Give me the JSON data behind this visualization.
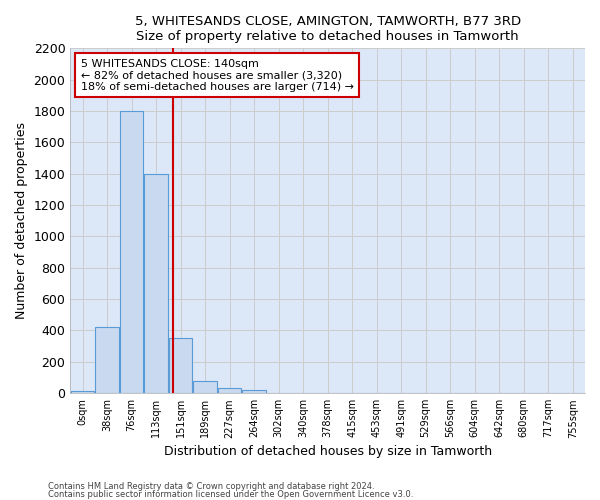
{
  "title": "5, WHITESANDS CLOSE, AMINGTON, TAMWORTH, B77 3RD",
  "subtitle": "Size of property relative to detached houses in Tamworth",
  "xlabel": "Distribution of detached houses by size in Tamworth",
  "ylabel": "Number of detached properties",
  "bar_labels": [
    "0sqm",
    "38sqm",
    "76sqm",
    "113sqm",
    "151sqm",
    "189sqm",
    "227sqm",
    "264sqm",
    "302sqm",
    "340sqm",
    "378sqm",
    "415sqm",
    "453sqm",
    "491sqm",
    "529sqm",
    "566sqm",
    "604sqm",
    "642sqm",
    "680sqm",
    "717sqm",
    "755sqm"
  ],
  "bar_values": [
    15,
    420,
    1800,
    1400,
    350,
    80,
    35,
    20,
    0,
    0,
    0,
    0,
    0,
    0,
    0,
    0,
    0,
    0,
    0,
    0,
    0
  ],
  "bar_fill_color": "#c8d9f0",
  "bar_edge_color": "#5b9bd5",
  "bar_linewidth": 0.8,
  "grid_color": "#cccccc",
  "bg_color": "#dce8f8",
  "annotation_text": "5 WHITESANDS CLOSE: 140sqm\n← 82% of detached houses are smaller (3,320)\n18% of semi-detached houses are larger (714) →",
  "annotation_box_facecolor": "#ffffff",
  "annotation_box_edgecolor": "#cc0000",
  "vline_x": 3.7,
  "vline_color": "#cc0000",
  "ylim": [
    0,
    2200
  ],
  "yticks": [
    0,
    200,
    400,
    600,
    800,
    1000,
    1200,
    1400,
    1600,
    1800,
    2000,
    2200
  ],
  "footer1": "Contains HM Land Registry data © Crown copyright and database right 2024.",
  "footer2": "Contains public sector information licensed under the Open Government Licence v3.0."
}
